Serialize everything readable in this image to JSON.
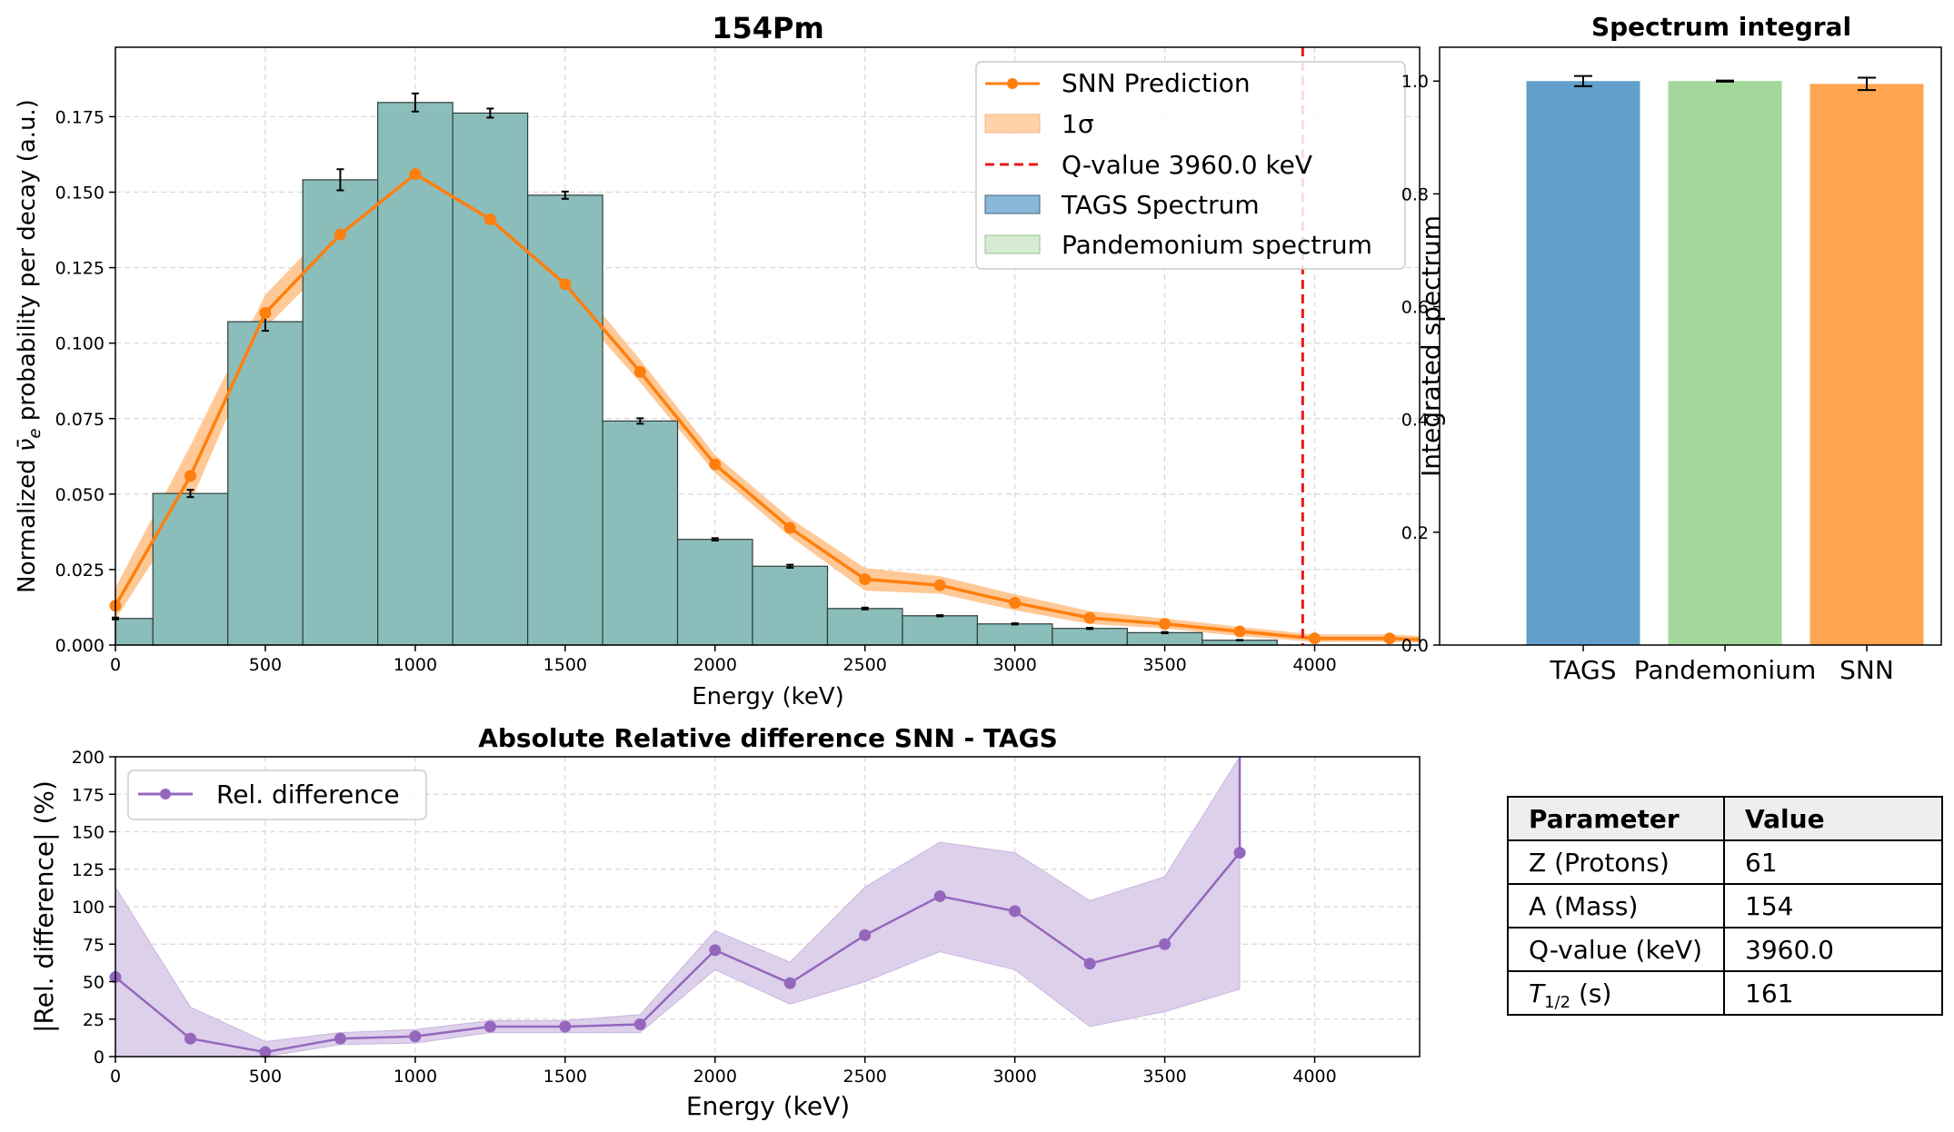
{
  "colors": {
    "tags": "#8bbdba",
    "snn": "#ff7f0e",
    "snn_band": "#ffd2a8",
    "qline": "#e8191c",
    "rel": "#9467bd",
    "rel_band": "#d9cbe8",
    "bar_tags": "#62a0cb",
    "bar_pand": "#a2d99a",
    "bar_snn": "#ffa451",
    "tags_legend": "#89b8d9",
    "pand_legend": "#d5ecd2",
    "grid": "#d8d8d8"
  },
  "chart_data": [
    {
      "type": "bar",
      "title": "154Pm",
      "xlabel": "Energy (keV)",
      "ylabel_pre": "Normalized ",
      "ylabel_sym": "ν̄",
      "ylabel_sub": "e",
      "ylabel_post": " probability per decay (a.u.)",
      "xlim": [
        0,
        4350
      ],
      "ylim": [
        0,
        0.198
      ],
      "xticks": [
        0,
        500,
        1000,
        1500,
        2000,
        2500,
        3000,
        3500,
        4000
      ],
      "yticks": [
        "0.000",
        "0.025",
        "0.050",
        "0.075",
        "0.100",
        "0.125",
        "0.150",
        "0.175"
      ],
      "grid": true,
      "legend_position": "top-right",
      "legend": [
        "SNN Prediction",
        "1σ",
        "Q-value 3960.0 keV",
        "TAGS Spectrum",
        "Pandemonium spectrum"
      ],
      "q_value": 3960.0,
      "tags_spectrum": {
        "bin_left": [
          0,
          125,
          375,
          625,
          875,
          1125,
          1375,
          1625,
          1875,
          2125,
          2375,
          2625,
          2875,
          3125,
          3375,
          3625
        ],
        "bin_right": [
          125,
          375,
          625,
          875,
          1125,
          1375,
          1625,
          1875,
          2125,
          2375,
          2625,
          2875,
          3125,
          3375,
          3625,
          3875
        ],
        "values": [
          0.0088,
          0.0502,
          0.1071,
          0.1541,
          0.1797,
          0.1762,
          0.149,
          0.0742,
          0.035,
          0.0261,
          0.0121,
          0.0097,
          0.007,
          0.0055,
          0.0041,
          0.0016
        ],
        "errors": [
          0.0003,
          0.0012,
          0.003,
          0.0035,
          0.003,
          0.0015,
          0.0012,
          0.0009,
          0.0004,
          0.0005,
          0.0003,
          0.0002,
          0.0002,
          0.0002,
          0.0002,
          0.0001
        ],
        "error_x": [
          0,
          250,
          500,
          750,
          1000,
          1250,
          1500,
          1750,
          2000,
          2250,
          2500,
          2750,
          3000,
          3250,
          3500,
          3750
        ]
      },
      "snn_prediction": {
        "x": [
          0,
          250,
          500,
          750,
          1000,
          1250,
          1500,
          1750,
          2000,
          2250,
          2500,
          2750,
          3000,
          3250,
          3500,
          3750,
          4000,
          4250,
          4350
        ],
        "y": [
          0.013,
          0.056,
          0.11,
          0.136,
          0.156,
          0.141,
          0.1195,
          0.0905,
          0.0598,
          0.0388,
          0.0218,
          0.0198,
          0.014,
          0.009,
          0.007,
          0.0045,
          0.0022,
          0.0022,
          0.0018
        ],
        "sigma_low": [
          0.0085,
          0.047,
          0.105,
          0.13,
          0.149,
          0.136,
          0.115,
          0.087,
          0.057,
          0.036,
          0.018,
          0.017,
          0.0115,
          0.007,
          0.0055,
          0.003,
          0.001,
          0.001,
          0.0008
        ],
        "sigma_high": [
          0.019,
          0.066,
          0.116,
          0.142,
          0.163,
          0.147,
          0.1245,
          0.0945,
          0.063,
          0.042,
          0.0255,
          0.0228,
          0.0168,
          0.0112,
          0.0088,
          0.006,
          0.0035,
          0.0035,
          0.003
        ],
        "markers_count": 18
      }
    },
    {
      "type": "bar",
      "title": "Spectrum integral",
      "ylabel": "Integrated spectrum",
      "categories": [
        "TAGS",
        "Pandemonium",
        "SNN"
      ],
      "values": [
        1.0,
        1.0,
        0.995
      ],
      "errors": [
        0.009,
        0.001,
        0.011
      ],
      "ylim": [
        0,
        1.06
      ],
      "yticks": [
        "0.0",
        "0.2",
        "0.4",
        "0.6",
        "0.8",
        "1.0"
      ],
      "grid": false
    },
    {
      "type": "line",
      "title": "Absolute Relative difference SNN - TAGS",
      "xlabel": "Energy (keV)",
      "ylabel": "|Rel. difference| (%)",
      "xlim": [
        0,
        4350
      ],
      "ylim": [
        0,
        200
      ],
      "xticks": [
        0,
        500,
        1000,
        1500,
        2000,
        2500,
        3000,
        3500,
        4000
      ],
      "yticks": [
        0,
        25,
        50,
        75,
        100,
        125,
        150,
        175,
        200
      ],
      "grid": true,
      "legend_position": "top-left",
      "series": [
        {
          "name": "Rel. difference",
          "x": [
            0,
            250,
            500,
            750,
            1000,
            1250,
            1500,
            1750,
            2000,
            2250,
            2500,
            2750,
            3000,
            3250,
            3500,
            3750,
            3750
          ],
          "y": [
            53,
            12,
            3,
            12,
            13.5,
            20,
            20,
            21.5,
            71,
            49,
            81,
            107,
            97,
            62,
            75,
            136,
            200
          ],
          "band_low": [
            0,
            0,
            0,
            8,
            9,
            16,
            16,
            16,
            58,
            35,
            50,
            70,
            58,
            20,
            30,
            45
          ],
          "band_high": [
            113,
            33,
            10,
            16,
            18,
            24,
            24,
            28,
            84,
            63,
            113,
            143,
            136,
            104,
            120,
            200
          ]
        }
      ]
    }
  ],
  "table": {
    "headers": [
      "Parameter",
      "Value"
    ],
    "rows": [
      [
        "Z (Protons)",
        "61"
      ],
      [
        "A (Mass)",
        "154"
      ],
      [
        "Q-value (keV)",
        "3960.0"
      ]
    ],
    "half_life_label_main": "T",
    "half_life_label_sub": "1/2",
    "half_life_label_unit": " (s)",
    "half_life_value": "161"
  }
}
